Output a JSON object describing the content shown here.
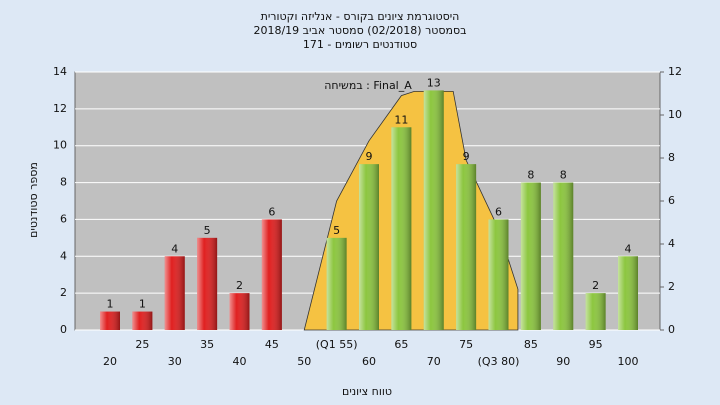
{
  "chart_data": {
    "type": "bar",
    "title": [
      "היסטוגרמת ציונים בקורס - אנליזה וקטורית",
      "בסמסטר (02/2018) סמסטר אביב 2018/19",
      "סטודנטים רשומים - 171"
    ],
    "annotation": "במשיחה : Final_A",
    "y_label": "מספר סטודנטים",
    "x_label": "טווח ציונים",
    "categories": [
      "20",
      "25",
      "30",
      "35",
      "40",
      "45",
      "50",
      "(Q1 55)",
      "60",
      "65",
      "70",
      "75",
      "(Q3 80)",
      "85",
      "90",
      "95",
      "100"
    ],
    "values": [
      1,
      1,
      4,
      5,
      2,
      6,
      null,
      5,
      9,
      11,
      13,
      9,
      6,
      8,
      8,
      2,
      4
    ],
    "colors": [
      "#e02020",
      "#e02020",
      "#e02020",
      "#e02020",
      "#e02020",
      "#e02020",
      "#e02020",
      "#8cc63f",
      "#8cc63f",
      "#8cc63f",
      "#8cc63f",
      "#8cc63f",
      "#8cc63f",
      "#8cc63f",
      "#8cc63f",
      "#8cc63f",
      "#8cc63f"
    ],
    "curve": {
      "color": "#f5c242",
      "x": [
        50,
        55,
        60,
        65,
        67,
        73,
        75,
        80,
        83
      ],
      "values": [
        0,
        6,
        8.8,
        10.9,
        11.1,
        11.1,
        7.9,
        4.7,
        1.9
      ]
    },
    "ylim": [
      0,
      14
    ],
    "yticks": [
      0,
      2,
      4,
      6,
      8,
      10,
      12,
      14
    ],
    "y2lim": [
      0,
      12
    ],
    "y2ticks": [
      0,
      2,
      4,
      6,
      8,
      10,
      12
    ],
    "grid": true
  }
}
